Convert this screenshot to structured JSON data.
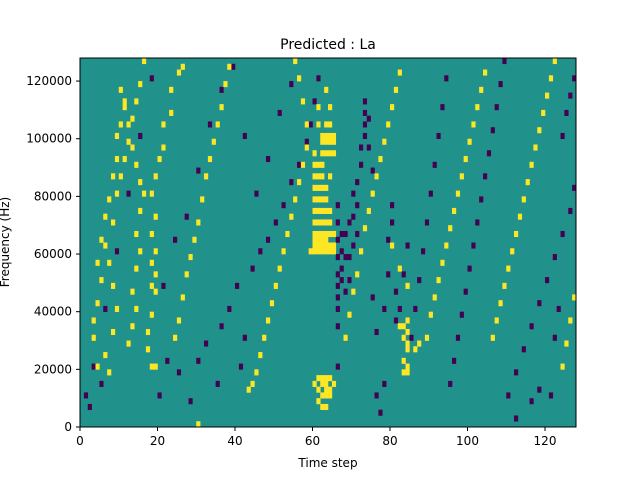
{
  "chart_data": {
    "type": "heatmap",
    "title": "Predicted : La",
    "xlabel": "Time step",
    "ylabel": "Frequency (Hz)",
    "xlim": [
      0,
      128
    ],
    "ylim": [
      0,
      128000
    ],
    "x_ticks": [
      0,
      20,
      40,
      60,
      80,
      100,
      120
    ],
    "y_ticks": [
      0,
      20000,
      40000,
      60000,
      80000,
      100000,
      120000
    ],
    "n_time_steps": 128,
    "n_frequency_bins": 128,
    "levels": {
      "low": -1,
      "mid": 0,
      "high": 1
    },
    "colors": {
      "low": "#440154",
      "mid": "#21918c",
      "high": "#fde725"
    },
    "grid": false,
    "legend": "none",
    "cells_high": [
      [
        30,
        0
      ],
      [
        62,
        6
      ],
      [
        63,
        6
      ],
      [
        61,
        8
      ],
      [
        62,
        10
      ],
      [
        63,
        10
      ],
      [
        64,
        10
      ],
      [
        61,
        12
      ],
      [
        63,
        12
      ],
      [
        64,
        12
      ],
      [
        60,
        14
      ],
      [
        62,
        14
      ],
      [
        63,
        14
      ],
      [
        65,
        14
      ],
      [
        61,
        16
      ],
      [
        62,
        16
      ],
      [
        63,
        16
      ],
      [
        64,
        16
      ],
      [
        59,
        60
      ],
      [
        60,
        60
      ],
      [
        61,
        60
      ],
      [
        62,
        60
      ],
      [
        63,
        60
      ],
      [
        64,
        60
      ],
      [
        65,
        60
      ],
      [
        60,
        62
      ],
      [
        61,
        62
      ],
      [
        62,
        62
      ],
      [
        63,
        62
      ],
      [
        64,
        62
      ],
      [
        65,
        62
      ],
      [
        60,
        64
      ],
      [
        61,
        64
      ],
      [
        62,
        64
      ],
      [
        63,
        64
      ],
      [
        60,
        66
      ],
      [
        61,
        66
      ],
      [
        62,
        66
      ],
      [
        63,
        66
      ],
      [
        64,
        66
      ],
      [
        65,
        66
      ],
      [
        60,
        70
      ],
      [
        61,
        70
      ],
      [
        62,
        70
      ],
      [
        63,
        70
      ],
      [
        64,
        70
      ],
      [
        60,
        74
      ],
      [
        61,
        74
      ],
      [
        62,
        74
      ],
      [
        63,
        74
      ],
      [
        64,
        74
      ],
      [
        60,
        78
      ],
      [
        61,
        78
      ],
      [
        62,
        78
      ],
      [
        63,
        78
      ],
      [
        60,
        82
      ],
      [
        61,
        82
      ],
      [
        62,
        82
      ],
      [
        63,
        82
      ],
      [
        60,
        86
      ],
      [
        61,
        86
      ],
      [
        62,
        86
      ],
      [
        64,
        86
      ],
      [
        60,
        90
      ],
      [
        61,
        90
      ],
      [
        62,
        90
      ],
      [
        60,
        94
      ],
      [
        62,
        94
      ],
      [
        63,
        94
      ],
      [
        64,
        94
      ],
      [
        65,
        94
      ],
      [
        62,
        98
      ],
      [
        63,
        98
      ],
      [
        64,
        98
      ],
      [
        65,
        98
      ],
      [
        62,
        100
      ],
      [
        63,
        100
      ],
      [
        64,
        100
      ],
      [
        65,
        100
      ],
      [
        61,
        104
      ],
      [
        63,
        104
      ],
      [
        64,
        104
      ],
      [
        61,
        110
      ],
      [
        64,
        110
      ],
      [
        63,
        116
      ],
      [
        84,
        18
      ],
      [
        83,
        18
      ],
      [
        84,
        20
      ],
      [
        83,
        22
      ],
      [
        84,
        26
      ],
      [
        84,
        28
      ],
      [
        83,
        30
      ],
      [
        84,
        32
      ],
      [
        82,
        34
      ],
      [
        83,
        34
      ],
      [
        84,
        36
      ],
      [
        86,
        26
      ],
      [
        87,
        28
      ],
      [
        80,
        62
      ],
      [
        82,
        54
      ],
      [
        84,
        48
      ],
      [
        18,
        20
      ],
      [
        19,
        20
      ],
      [
        17,
        26
      ],
      [
        17,
        32
      ],
      [
        18,
        38
      ],
      [
        19,
        46
      ],
      [
        18,
        48
      ],
      [
        19,
        52
      ],
      [
        18,
        56
      ],
      [
        19,
        60
      ],
      [
        18,
        66
      ],
      [
        19,
        72
      ],
      [
        18,
        80
      ],
      [
        19,
        86
      ],
      [
        20,
        92
      ],
      [
        21,
        96
      ],
      [
        21,
        104
      ],
      [
        23,
        108
      ],
      [
        23,
        116
      ],
      [
        25,
        122
      ],
      [
        26,
        124
      ],
      [
        12,
        28
      ],
      [
        13,
        34
      ],
      [
        14,
        40
      ],
      [
        13,
        46
      ],
      [
        14,
        54
      ],
      [
        15,
        60
      ],
      [
        14,
        66
      ],
      [
        15,
        74
      ],
      [
        16,
        80
      ],
      [
        15,
        84
      ],
      [
        14,
        90
      ],
      [
        13,
        96
      ],
      [
        12,
        104
      ],
      [
        11,
        110
      ],
      [
        10,
        116
      ],
      [
        4,
        20
      ],
      [
        3,
        30
      ],
      [
        3,
        36
      ],
      [
        4,
        42
      ],
      [
        5,
        50
      ],
      [
        4,
        56
      ],
      [
        5,
        64
      ],
      [
        6,
        72
      ],
      [
        7,
        78
      ],
      [
        8,
        86
      ],
      [
        9,
        92
      ],
      [
        9,
        100
      ],
      [
        10,
        104
      ],
      [
        11,
        112
      ],
      [
        7,
        18
      ],
      [
        6,
        24
      ],
      [
        8,
        32
      ],
      [
        9,
        40
      ],
      [
        8,
        48
      ],
      [
        7,
        56
      ],
      [
        6,
        62
      ],
      [
        8,
        70
      ],
      [
        9,
        80
      ],
      [
        10,
        86
      ],
      [
        11,
        92
      ],
      [
        12,
        98
      ],
      [
        13,
        106
      ],
      [
        14,
        112
      ],
      [
        15,
        118
      ],
      [
        16,
        126
      ],
      [
        24,
        30
      ],
      [
        25,
        36
      ],
      [
        26,
        44
      ],
      [
        27,
        52
      ],
      [
        28,
        58
      ],
      [
        29,
        64
      ],
      [
        30,
        70
      ],
      [
        31,
        78
      ],
      [
        32,
        86
      ],
      [
        33,
        92
      ],
      [
        34,
        98
      ],
      [
        35,
        104
      ],
      [
        36,
        110
      ],
      [
        37,
        118
      ],
      [
        38,
        124
      ],
      [
        43,
        12
      ],
      [
        44,
        14
      ],
      [
        45,
        18
      ],
      [
        46,
        24
      ],
      [
        47,
        30
      ],
      [
        48,
        36
      ],
      [
        49,
        42
      ],
      [
        50,
        48
      ],
      [
        51,
        54
      ],
      [
        52,
        60
      ],
      [
        53,
        66
      ],
      [
        54,
        72
      ],
      [
        55,
        78
      ],
      [
        56,
        84
      ],
      [
        57,
        90
      ],
      [
        58,
        96
      ],
      [
        58,
        104
      ],
      [
        57,
        112
      ],
      [
        56,
        120
      ],
      [
        55,
        126
      ],
      [
        68,
        30
      ],
      [
        69,
        38
      ],
      [
        70,
        46
      ],
      [
        71,
        52
      ],
      [
        72,
        60
      ],
      [
        73,
        68
      ],
      [
        74,
        74
      ],
      [
        75,
        80
      ],
      [
        76,
        86
      ],
      [
        77,
        92
      ],
      [
        78,
        98
      ],
      [
        79,
        104
      ],
      [
        80,
        110
      ],
      [
        81,
        116
      ],
      [
        82,
        122
      ],
      [
        89,
        30
      ],
      [
        90,
        38
      ],
      [
        91,
        44
      ],
      [
        92,
        50
      ],
      [
        93,
        56
      ],
      [
        94,
        62
      ],
      [
        95,
        68
      ],
      [
        96,
        74
      ],
      [
        97,
        80
      ],
      [
        98,
        86
      ],
      [
        99,
        92
      ],
      [
        100,
        98
      ],
      [
        101,
        104
      ],
      [
        102,
        110
      ],
      [
        103,
        116
      ],
      [
        104,
        122
      ],
      [
        106,
        30
      ],
      [
        107,
        36
      ],
      [
        108,
        42
      ],
      [
        109,
        48
      ],
      [
        110,
        54
      ],
      [
        111,
        60
      ],
      [
        112,
        66
      ],
      [
        113,
        72
      ],
      [
        114,
        78
      ],
      [
        115,
        84
      ],
      [
        116,
        90
      ],
      [
        117,
        96
      ],
      [
        118,
        102
      ],
      [
        119,
        108
      ],
      [
        120,
        114
      ],
      [
        121,
        120
      ],
      [
        122,
        126
      ],
      [
        124,
        20
      ],
      [
        125,
        28
      ],
      [
        126,
        36
      ],
      [
        127,
        44
      ]
    ],
    "cells_low": [
      [
        1,
        10
      ],
      [
        2,
        6
      ],
      [
        5,
        14
      ],
      [
        20,
        10
      ],
      [
        22,
        22
      ],
      [
        25,
        18
      ],
      [
        28,
        8
      ],
      [
        30,
        22
      ],
      [
        32,
        28
      ],
      [
        35,
        14
      ],
      [
        36,
        34
      ],
      [
        38,
        40
      ],
      [
        40,
        48
      ],
      [
        41,
        20
      ],
      [
        42,
        30
      ],
      [
        44,
        54
      ],
      [
        46,
        60
      ],
      [
        48,
        64
      ],
      [
        50,
        70
      ],
      [
        52,
        76
      ],
      [
        54,
        84
      ],
      [
        56,
        90
      ],
      [
        58,
        98
      ],
      [
        59,
        104
      ],
      [
        60,
        112
      ],
      [
        61,
        120
      ],
      [
        66,
        20
      ],
      [
        66,
        34
      ],
      [
        66,
        40
      ],
      [
        66,
        44
      ],
      [
        66,
        48
      ],
      [
        66,
        52
      ],
      [
        66,
        58
      ],
      [
        66,
        64
      ],
      [
        66,
        70
      ],
      [
        66,
        76
      ],
      [
        67,
        50
      ],
      [
        67,
        54
      ],
      [
        67,
        60
      ],
      [
        67,
        66
      ],
      [
        68,
        46
      ],
      [
        68,
        58
      ],
      [
        68,
        66
      ],
      [
        69,
        50
      ],
      [
        69,
        58
      ],
      [
        69,
        70
      ],
      [
        70,
        62
      ],
      [
        70,
        72
      ],
      [
        70,
        80
      ],
      [
        71,
        66
      ],
      [
        71,
        76
      ],
      [
        71,
        84
      ],
      [
        72,
        90
      ],
      [
        72,
        96
      ],
      [
        73,
        100
      ],
      [
        73,
        104
      ],
      [
        73,
        108
      ],
      [
        73,
        112
      ],
      [
        74,
        106
      ],
      [
        74,
        96
      ],
      [
        75,
        88
      ],
      [
        75,
        44
      ],
      [
        76,
        32
      ],
      [
        76,
        10
      ],
      [
        77,
        4
      ],
      [
        78,
        14
      ],
      [
        78,
        40
      ],
      [
        79,
        52
      ],
      [
        79,
        64
      ],
      [
        80,
        70
      ],
      [
        80,
        76
      ],
      [
        81,
        36
      ],
      [
        81,
        46
      ],
      [
        82,
        40
      ],
      [
        83,
        52
      ],
      [
        84,
        62
      ],
      [
        85,
        30
      ],
      [
        86,
        40
      ],
      [
        87,
        50
      ],
      [
        88,
        60
      ],
      [
        89,
        70
      ],
      [
        90,
        80
      ],
      [
        91,
        90
      ],
      [
        92,
        100
      ],
      [
        93,
        110
      ],
      [
        94,
        120
      ],
      [
        95,
        14
      ],
      [
        96,
        22
      ],
      [
        97,
        30
      ],
      [
        98,
        38
      ],
      [
        99,
        46
      ],
      [
        100,
        54
      ],
      [
        101,
        62
      ],
      [
        102,
        70
      ],
      [
        103,
        78
      ],
      [
        104,
        86
      ],
      [
        105,
        94
      ],
      [
        106,
        102
      ],
      [
        107,
        110
      ],
      [
        108,
        118
      ],
      [
        109,
        126
      ],
      [
        110,
        10
      ],
      [
        112,
        18
      ],
      [
        114,
        26
      ],
      [
        116,
        34
      ],
      [
        118,
        42
      ],
      [
        120,
        50
      ],
      [
        122,
        58
      ],
      [
        124,
        66
      ],
      [
        126,
        74
      ],
      [
        127,
        82
      ],
      [
        121,
        10
      ],
      [
        122,
        30
      ],
      [
        123,
        40
      ],
      [
        124,
        100
      ],
      [
        125,
        108
      ],
      [
        126,
        114
      ],
      [
        127,
        120
      ],
      [
        112,
        2
      ],
      [
        116,
        8
      ],
      [
        118,
        12
      ],
      [
        3,
        20
      ],
      [
        6,
        40
      ],
      [
        9,
        60
      ],
      [
        12,
        80
      ],
      [
        15,
        100
      ],
      [
        18,
        120
      ],
      [
        21,
        48
      ],
      [
        24,
        64
      ],
      [
        27,
        72
      ],
      [
        30,
        88
      ],
      [
        33,
        104
      ],
      [
        36,
        116
      ],
      [
        39,
        124
      ],
      [
        42,
        100
      ],
      [
        45,
        80
      ],
      [
        48,
        92
      ],
      [
        51,
        108
      ],
      [
        54,
        118
      ]
    ]
  }
}
